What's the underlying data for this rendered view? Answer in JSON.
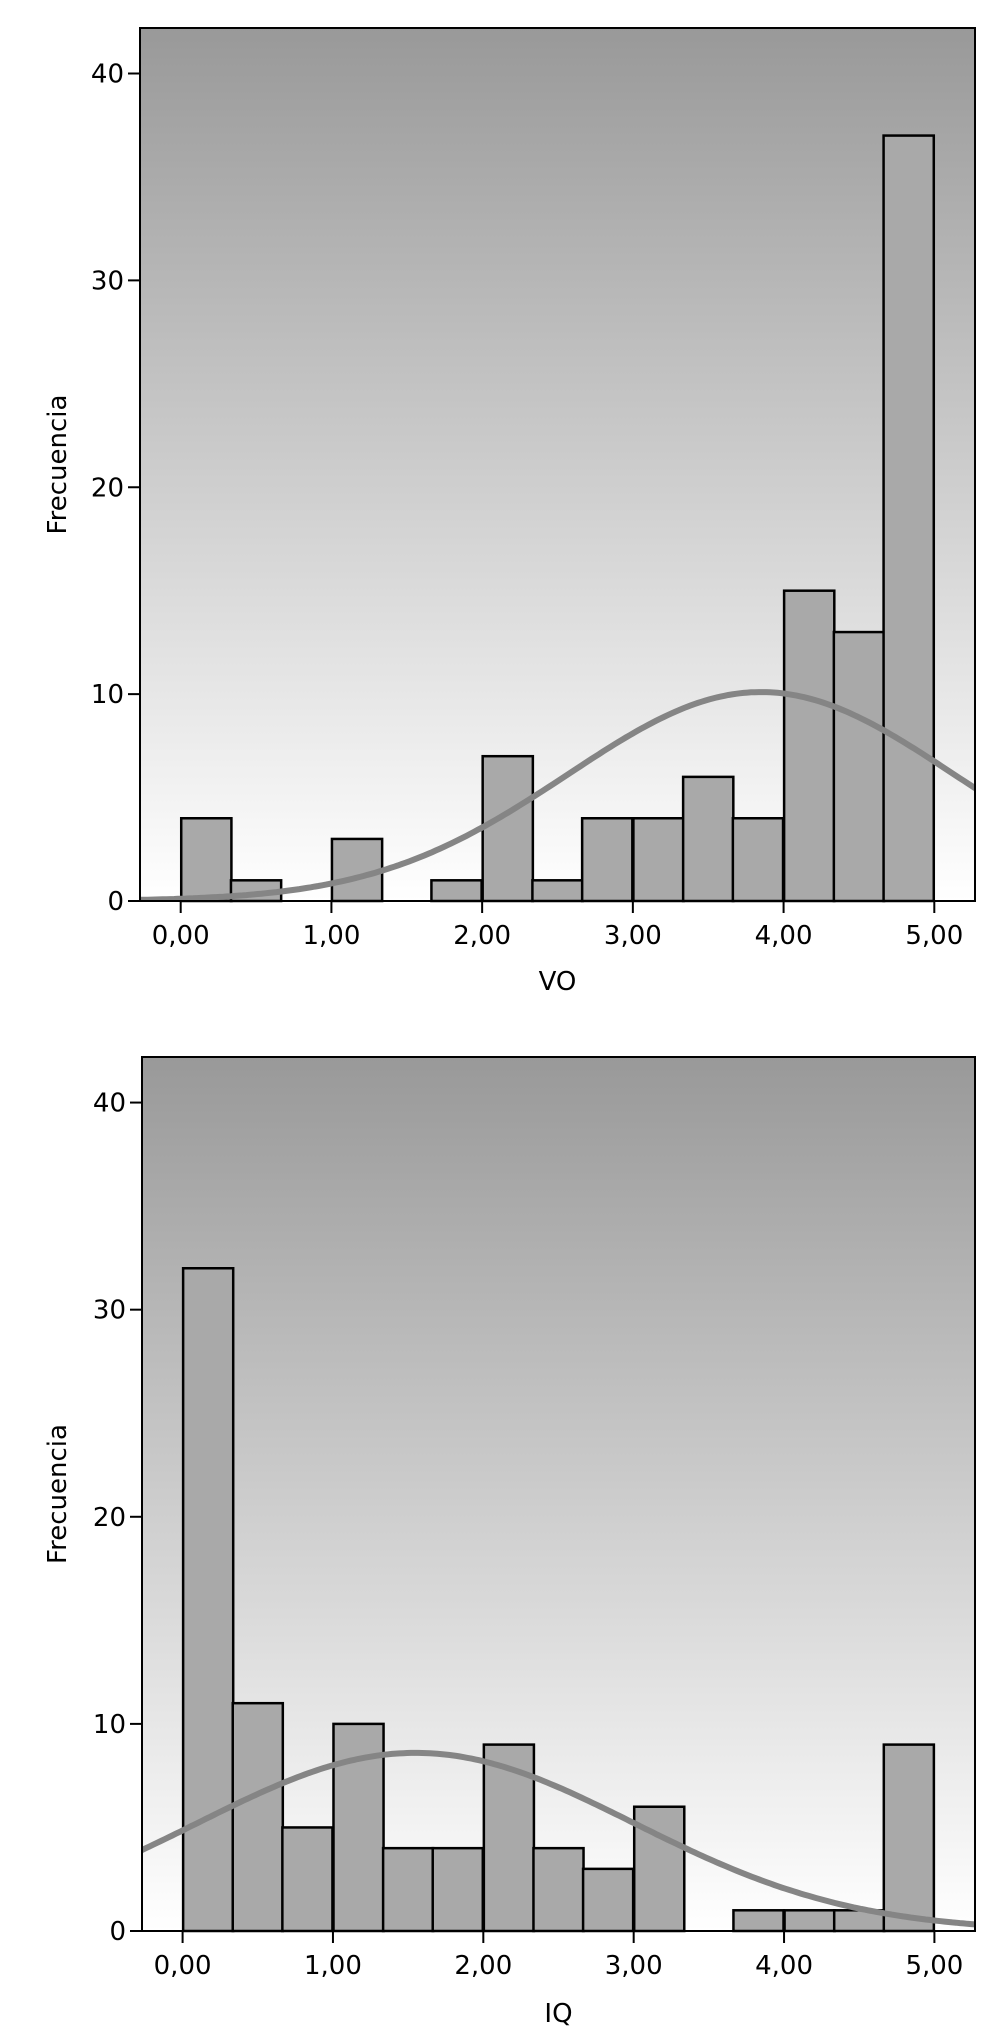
{
  "chart_data": [
    {
      "type": "bar",
      "xlabel": "VO",
      "ylabel": "Frecuencia",
      "xlim": [
        -0.27,
        5.27
      ],
      "ylim": [
        0,
        42.2
      ],
      "x_ticks": [
        0,
        1,
        2,
        3,
        4,
        5
      ],
      "x_tick_labels": [
        "0,00",
        "1,00",
        "2,00",
        "3,00",
        "4,00",
        "5,00"
      ],
      "y_ticks": [
        0,
        10,
        20,
        30,
        40
      ],
      "y_tick_labels": [
        "0",
        "10",
        "20",
        "30",
        "40"
      ],
      "bin_width": 0.333,
      "bins": [
        {
          "x": 0.17,
          "value": 4
        },
        {
          "x": 0.5,
          "value": 1
        },
        {
          "x": 1.17,
          "value": 3
        },
        {
          "x": 1.83,
          "value": 1
        },
        {
          "x": 2.17,
          "value": 7
        },
        {
          "x": 2.5,
          "value": 1
        },
        {
          "x": 2.83,
          "value": 4
        },
        {
          "x": 3.17,
          "value": 4
        },
        {
          "x": 3.5,
          "value": 6
        },
        {
          "x": 3.83,
          "value": 4
        },
        {
          "x": 4.17,
          "value": 15
        },
        {
          "x": 4.5,
          "value": 13
        },
        {
          "x": 4.83,
          "value": 37
        }
      ],
      "normal_curve": {
        "mean": 3.85,
        "sd": 1.28,
        "peak": 10.1
      },
      "grid": false,
      "background": {
        "top": "#999999",
        "bottom": "#ffffff"
      }
    },
    {
      "type": "bar",
      "xlabel": "IQ",
      "ylabel": "Frecuencia",
      "xlim": [
        -0.27,
        5.27
      ],
      "ylim": [
        0,
        42.2
      ],
      "x_ticks": [
        0,
        1,
        2,
        3,
        4,
        5
      ],
      "x_tick_labels": [
        "0,00",
        "1,00",
        "2,00",
        "3,00",
        "4,00",
        "5,00"
      ],
      "y_ticks": [
        0,
        10,
        20,
        30,
        40
      ],
      "y_tick_labels": [
        "0",
        "10",
        "20",
        "30",
        "40"
      ],
      "bin_width": 0.333,
      "bins": [
        {
          "x": 0.17,
          "value": 32
        },
        {
          "x": 0.5,
          "value": 11
        },
        {
          "x": 0.83,
          "value": 5
        },
        {
          "x": 1.17,
          "value": 10
        },
        {
          "x": 1.5,
          "value": 4
        },
        {
          "x": 1.83,
          "value": 4
        },
        {
          "x": 2.17,
          "value": 9
        },
        {
          "x": 2.5,
          "value": 4
        },
        {
          "x": 2.83,
          "value": 3
        },
        {
          "x": 3.17,
          "value": 6
        },
        {
          "x": 3.83,
          "value": 1
        },
        {
          "x": 4.17,
          "value": 1
        },
        {
          "x": 4.5,
          "value": 1
        },
        {
          "x": 4.83,
          "value": 9
        }
      ],
      "normal_curve": {
        "mean": 1.55,
        "sd": 1.45,
        "peak": 8.6
      },
      "grid": false,
      "background": {
        "top": "#999999",
        "bottom": "#ffffff"
      }
    }
  ]
}
